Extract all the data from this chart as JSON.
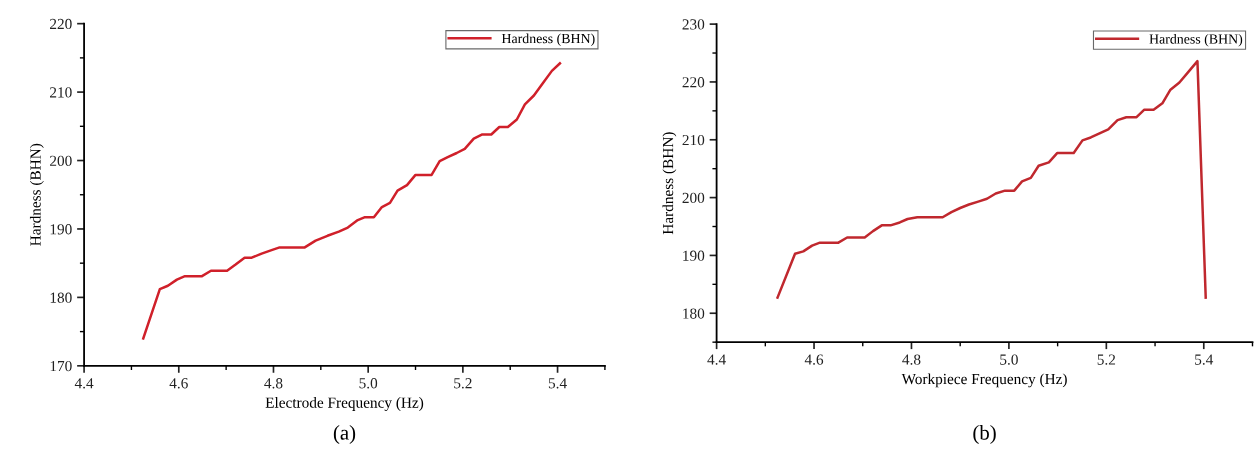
{
  "chart_data": [
    {
      "type": "line",
      "xlabel": "Electrode Frequency (Hz)",
      "ylabel": "Hardness (BHN)",
      "legend": "top right",
      "grid": false,
      "marker": "none",
      "line_style": "solid",
      "xlim": [
        4.4,
        5.5
      ],
      "ylim": [
        170,
        220
      ],
      "xticks": [
        4.4,
        {
          "value": 4.5,
          "label": null
        },
        4.6,
        {
          "value": 4.7,
          "label": null
        },
        4.8,
        {
          "value": 4.9,
          "label": null
        },
        {
          "value": 5.0,
          "label": "5.0"
        },
        {
          "value": 5.1,
          "label": null
        },
        5.2,
        {
          "value": 5.3,
          "label": null
        },
        5.4,
        {
          "value": 5.5,
          "label": null
        }
      ],
      "yticks": [
        170,
        {
          "value": 175,
          "label": null
        },
        180,
        {
          "value": 185,
          "label": null
        },
        190,
        {
          "value": 195,
          "label": null
        },
        200,
        {
          "value": 205,
          "label": null
        },
        210,
        {
          "value": 215,
          "label": null
        },
        220
      ],
      "annotations": [
        "(a)"
      ],
      "series": [
        {
          "name": "Hardness (BHN)",
          "color": "#d0202a",
          "x": [
            4.525,
            4.56,
            4.577,
            4.596,
            4.613,
            4.649,
            4.668,
            4.702,
            4.72,
            4.739,
            4.754,
            4.775,
            4.796,
            4.813,
            4.866,
            4.889,
            4.914,
            4.938,
            4.957,
            4.978,
            4.992,
            5.012,
            5.029,
            5.046,
            5.062,
            5.082,
            5.1,
            5.134,
            5.151,
            5.168,
            5.187,
            5.204,
            5.223,
            5.24,
            5.26,
            5.277,
            5.295,
            5.314,
            5.331,
            5.35,
            5.37,
            5.388,
            5.405
          ],
          "values": [
            174.0,
            181.2,
            181.7,
            182.6,
            183.1,
            183.1,
            183.9,
            183.9,
            184.8,
            185.8,
            185.8,
            186.4,
            186.9,
            187.3,
            187.3,
            188.3,
            189.0,
            189.6,
            190.2,
            191.3,
            191.7,
            191.7,
            193.2,
            193.8,
            195.6,
            196.4,
            197.9,
            197.9,
            199.9,
            200.5,
            201.1,
            201.7,
            203.2,
            203.8,
            203.8,
            204.9,
            204.9,
            206.0,
            208.2,
            209.5,
            211.4,
            213.1,
            214.2
          ]
        }
      ]
    },
    {
      "type": "line",
      "xlabel": "Workpiece Frequency (Hz)",
      "ylabel": "Hardness (BHN)",
      "legend": "top right",
      "grid": false,
      "marker": "none",
      "line_style": "solid",
      "xlim": [
        4.4,
        5.5
      ],
      "ylim": [
        175,
        230
      ],
      "xticks": [
        4.4,
        {
          "value": 4.5,
          "label": null
        },
        4.6,
        {
          "value": 4.7,
          "label": null
        },
        4.8,
        {
          "value": 4.9,
          "label": null
        },
        {
          "value": 5.0,
          "label": "5.0"
        },
        {
          "value": 5.1,
          "label": null
        },
        5.2,
        {
          "value": 5.3,
          "label": null
        },
        5.4,
        {
          "value": 5.5,
          "label": null
        }
      ],
      "yticks": [
        {
          "value": 175,
          "label": null
        },
        180,
        {
          "value": 185,
          "label": null
        },
        190,
        {
          "value": 195,
          "label": null
        },
        200,
        {
          "value": 205,
          "label": null
        },
        210,
        {
          "value": 215,
          "label": null
        },
        220,
        {
          "value": 225,
          "label": null
        },
        230
      ],
      "annotations": [
        "(b)"
      ],
      "series": [
        {
          "name": "Hardness (BHN)",
          "color": "#c0282e",
          "x": [
            4.525,
            4.561,
            4.578,
            4.596,
            4.612,
            4.65,
            4.668,
            4.704,
            4.721,
            4.739,
            4.757,
            4.776,
            4.792,
            4.812,
            4.864,
            4.882,
            4.9,
            4.918,
            4.937,
            4.955,
            4.973,
            4.992,
            5.011,
            5.027,
            5.045,
            5.061,
            5.082,
            5.099,
            5.133,
            5.151,
            5.168,
            5.186,
            5.204,
            5.223,
            5.241,
            5.262,
            5.278,
            5.297,
            5.315,
            5.331,
            5.35,
            5.368,
            5.387,
            5.404
          ],
          "values": [
            182.7,
            190.3,
            190.7,
            191.7,
            192.2,
            192.2,
            193.1,
            193.1,
            194.2,
            195.2,
            195.2,
            195.7,
            196.3,
            196.6,
            196.6,
            197.5,
            198.2,
            198.8,
            199.3,
            199.8,
            200.7,
            201.2,
            201.2,
            202.8,
            203.4,
            205.5,
            206.1,
            207.7,
            207.7,
            209.9,
            210.4,
            211.1,
            211.8,
            213.4,
            213.9,
            213.9,
            215.2,
            215.2,
            216.3,
            218.6,
            219.9,
            221.7,
            223.6,
            182.7
          ]
        }
      ]
    }
  ]
}
